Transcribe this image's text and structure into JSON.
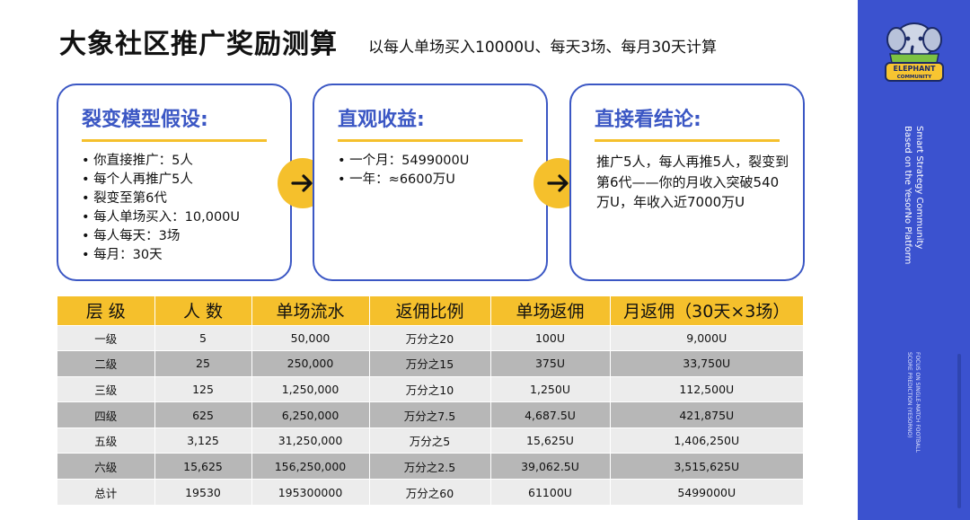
{
  "header": {
    "title": "大象社区推广奖励测算",
    "subtitle": "以每人单场买入10000U、每天3场、每月30天计算"
  },
  "cards": {
    "assumptions": {
      "title": "裂变模型假设:",
      "items": [
        "你直接推广：5人",
        "每个人再推广5人",
        "裂变至第6代",
        "每人单场买入：10,000U",
        "每人每天：3场",
        "每月：30天"
      ]
    },
    "earnings": {
      "title": "直观收益:",
      "items": [
        "一个月：5499000U",
        "一年：≈6600万U"
      ]
    },
    "conclusion": {
      "title": "直接看结论:",
      "text": "推广5人，每人再推5人，裂变到第6代——你的月收入突破540万U，年收入近7000万U"
    }
  },
  "table": {
    "headers": [
      "层 级",
      "人 数",
      "单场流水",
      "返佣比例",
      "单场返佣",
      "月返佣（30天×3场）"
    ],
    "rows": [
      [
        "一级",
        "5",
        "50,000",
        "万分之20",
        "100U",
        "9,000U"
      ],
      [
        "二级",
        "25",
        "250,000",
        "万分之15",
        "375U",
        "33,750U"
      ],
      [
        "三级",
        "125",
        "1,250,000",
        "万分之10",
        "1,250U",
        "112,500U"
      ],
      [
        "四级",
        "625",
        "6,250,000",
        "万分之7.5",
        "4,687.5U",
        "421,875U"
      ],
      [
        "五级",
        "3,125",
        "31,250,000",
        "万分之5",
        "15,625U",
        "1,406,250U"
      ],
      [
        "六级",
        "15,625",
        "156,250,000",
        "万分之2.5",
        "39,062.5U",
        "3,515,625U"
      ],
      [
        "总计",
        "19530",
        "195300000",
        "万分之60",
        "61100U",
        "5499000U"
      ]
    ]
  },
  "sidebar": {
    "logo_line1": "ELEPHANT",
    "logo_line2": "COMMUNITY",
    "vertical_text_1": "Smart Strategy Community\nBased on the YesorNo Platform",
    "vertical_text_2": "FOCUS ON SINGLE-MATCH FOOTBALL\nSCORE PREDICTION (YESORNO)"
  },
  "colors": {
    "accent_yellow": "#f5c02c",
    "accent_blue": "#3b57c4",
    "sidebar_blue": "#3b52cf"
  }
}
